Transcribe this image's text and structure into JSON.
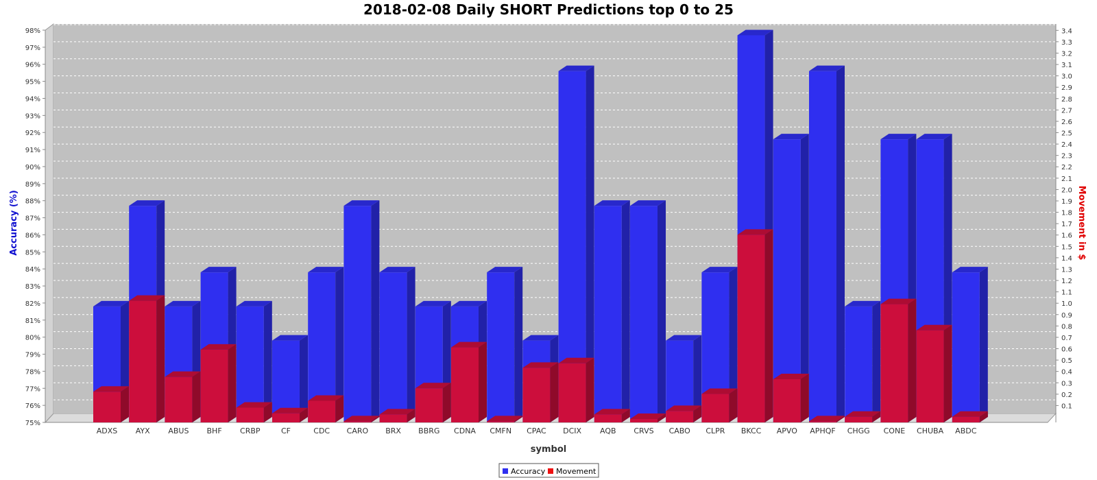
{
  "chart_data": {
    "type": "bar",
    "title": "2018-02-08 Daily SHORT Predictions top 0 to 25",
    "xlabel": "symbol",
    "ylabel_left": "Accuracy (%)",
    "ylabel_right": "Movement in $",
    "ylim_left": [
      75,
      98
    ],
    "ylim_right": [
      0,
      3.45
    ],
    "left_ticks": [
      "75%",
      "76%",
      "77%",
      "78%",
      "79%",
      "80%",
      "81%",
      "82%",
      "83%",
      "84%",
      "85%",
      "86%",
      "87%",
      "88%",
      "89%",
      "90%",
      "91%",
      "92%",
      "93%",
      "94%",
      "95%",
      "96%",
      "97%",
      "98%"
    ],
    "right_ticks": [
      "0.1",
      "0.2",
      "0.3",
      "0.4",
      "0.5",
      "0.6",
      "0.7",
      "0.8",
      "0.9",
      "1.0",
      "1.1",
      "1.2",
      "1.3",
      "1.4",
      "1.5",
      "1.6",
      "1.7",
      "1.8",
      "1.9",
      "2.0",
      "2.1",
      "2.2",
      "2.3",
      "2.4",
      "2.5",
      "2.6",
      "2.7",
      "2.8",
      "2.9",
      "3.0",
      "3.1",
      "3.2",
      "3.3",
      "3.4"
    ],
    "categories": [
      "ADXS",
      "AYX",
      "ABUS",
      "BHF",
      "CRBP",
      "CF",
      "CDC",
      "CARO",
      "BRX",
      "BBRG",
      "CDNA",
      "CMFN",
      "CPAC",
      "DCIX",
      "AQB",
      "CRVS",
      "CABO",
      "CLPR",
      "BKCC",
      "APVO",
      "APHQF",
      "CHGG",
      "CONE",
      "CHUBA",
      "ABDC"
    ],
    "series": [
      {
        "name": "Accuracy",
        "axis": "left",
        "color": "#2f2ff0",
        "values": [
          81.8,
          87.7,
          81.8,
          83.8,
          81.8,
          79.8,
          83.8,
          87.7,
          83.8,
          81.8,
          81.8,
          83.8,
          79.8,
          95.6,
          87.7,
          87.7,
          79.8,
          83.8,
          97.7,
          91.6,
          95.6,
          81.8,
          91.6,
          91.6,
          83.8
        ]
      },
      {
        "name": "Movement",
        "axis": "right",
        "color": "#cc0e3c",
        "values": [
          0.27,
          1.07,
          0.4,
          0.64,
          0.13,
          0.08,
          0.19,
          0.01,
          0.07,
          0.3,
          0.66,
          0.01,
          0.48,
          0.52,
          0.07,
          0.03,
          0.1,
          0.25,
          1.65,
          0.38,
          0.01,
          0.05,
          1.04,
          0.81,
          0.05
        ]
      }
    ],
    "grid": true,
    "legend_position": "bottom-center"
  }
}
